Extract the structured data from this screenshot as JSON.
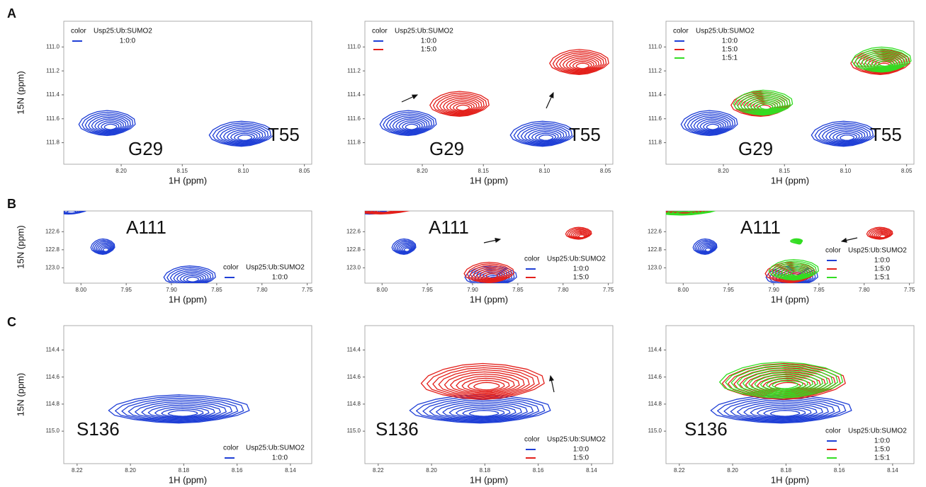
{
  "chart_data": [
    {
      "type": "contour",
      "panel": "A",
      "xlabel": "1H (ppm)",
      "ylabel": "15N (ppm)",
      "legend_heading": "color",
      "legend_title": "Usp25:Ub:SUMO2",
      "legend": "upper left",
      "contour_levels": 9,
      "xlim": [
        8.247,
        8.044
      ],
      "ylim": [
        111.98,
        110.785
      ],
      "xticks": [
        {
          "value": 8.2,
          "label": "8.20"
        },
        8.15,
        {
          "value": 8.1,
          "label": "8.10"
        },
        8.05
      ],
      "yticks": [
        {
          "value": 111,
          "label": "111.0"
        },
        111.2,
        111.4,
        111.6,
        111.8
      ],
      "annotations": [
        "G29",
        "T55"
      ],
      "series": [
        {
          "name": "1:0:0",
          "color": "#1f3fd6",
          "peaks": [
            {
              "x": 8.21,
              "y": 111.66,
              "x_width": 0.021,
              "y_width": 0.11
            },
            {
              "x": 8.1,
              "y": 111.75,
              "x_width": 0.024,
              "y_width": 0.11
            }
          ]
        }
      ]
    },
    {
      "type": "contour",
      "xlabel": "1H (ppm)",
      "legend_heading": "color",
      "legend_title": "Usp25:Ub:SUMO2",
      "legend": "upper left",
      "contour_levels": 9,
      "xlim": [
        8.247,
        8.044
      ],
      "ylim": [
        111.98,
        110.785
      ],
      "xticks": [
        {
          "value": 8.2,
          "label": "8.20"
        },
        8.15,
        {
          "value": 8.1,
          "label": "8.10"
        },
        8.05
      ],
      "yticks": [
        {
          "value": 111,
          "label": "111.0"
        },
        111.2,
        111.4,
        111.6,
        111.8
      ],
      "annotations": [
        "G29",
        "T55"
      ],
      "series": [
        {
          "name": "1:0:0",
          "color": "#1f3fd6",
          "peaks": [
            {
              "x": 8.21,
              "y": 111.66,
              "x_width": 0.021,
              "y_width": 0.11
            },
            {
              "x": 8.1,
              "y": 111.75,
              "x_width": 0.024,
              "y_width": 0.11
            }
          ]
        },
        {
          "name": "1:5:0",
          "color": "#e3201b",
          "peaks": [
            {
              "x": 8.168,
              "y": 111.5,
              "x_width": 0.022,
              "y_width": 0.11
            },
            {
              "x": 8.07,
              "y": 111.15,
              "x_width": 0.022,
              "y_width": 0.11
            }
          ]
        }
      ]
    },
    {
      "type": "contour",
      "xlabel": "1H (ppm)",
      "legend_heading": "color",
      "legend_title": "Usp25:Ub:SUMO2",
      "legend": "upper left",
      "contour_levels": 9,
      "xlim": [
        8.247,
        8.044
      ],
      "ylim": [
        111.98,
        110.785
      ],
      "xticks": [
        {
          "value": 8.2,
          "label": "8.20"
        },
        8.15,
        {
          "value": 8.1,
          "label": "8.10"
        },
        8.05
      ],
      "yticks": [
        {
          "value": 111,
          "label": "111.0"
        },
        111.2,
        111.4,
        111.6,
        111.8
      ],
      "annotations": [
        "G29",
        "T55"
      ],
      "series": [
        {
          "name": "1:0:0",
          "color": "#1f3fd6",
          "peaks": [
            {
              "x": 8.21,
              "y": 111.66,
              "x_width": 0.021,
              "y_width": 0.11
            },
            {
              "x": 8.1,
              "y": 111.75,
              "x_width": 0.024,
              "y_width": 0.11
            }
          ]
        },
        {
          "name": "1:5:0",
          "color": "#e3201b",
          "peaks": [
            {
              "x": 8.168,
              "y": 111.5,
              "x_width": 0.022,
              "y_width": 0.11
            },
            {
              "x": 8.07,
              "y": 111.15,
              "x_width": 0.022,
              "y_width": 0.11
            }
          ]
        },
        {
          "name": "1:5:1",
          "color": "#33dd22",
          "peaks": [
            {
              "x": 8.166,
              "y": 111.49,
              "x_width": 0.022,
              "y_width": 0.11
            },
            {
              "x": 8.069,
              "y": 111.13,
              "x_width": 0.022,
              "y_width": 0.11
            }
          ]
        }
      ]
    },
    {
      "type": "contour",
      "panel": "B",
      "xlabel": "1H (ppm)",
      "ylabel": "15N (ppm)",
      "legend_heading": "color",
      "legend_title": "Usp25:Ub:SUMO2",
      "legend": "lower right",
      "contour_levels": 8,
      "xlim": [
        8.019,
        7.745
      ],
      "ylim": [
        123.17,
        122.37
      ],
      "xticks": [
        {
          "value": 8,
          "label": "8.00"
        },
        7.95,
        {
          "value": 7.9,
          "label": "7.90"
        },
        7.85,
        {
          "value": 7.8,
          "label": "7.80"
        },
        7.75
      ],
      "yticks": [
        122.6,
        122.8,
        {
          "value": 123,
          "label": "123.0"
        }
      ],
      "annotations": [
        "A111"
      ],
      "series": [
        {
          "name": "1:0:0",
          "color": "#1f3fd6",
          "peaks": [
            {
              "x": 8.012,
              "y": 122.37,
              "x_width": 0.02,
              "y_width": 0.06
            },
            {
              "x": 7.974,
              "y": 122.79,
              "x_width": 0.012,
              "y_width": 0.09
            },
            {
              "x": 7.878,
              "y": 123.12,
              "x_width": 0.026,
              "y_width": 0.12
            }
          ]
        }
      ]
    },
    {
      "type": "contour",
      "xlabel": "1H (ppm)",
      "legend_heading": "color",
      "legend_title": "Usp25:Ub:SUMO2",
      "legend": "lower right",
      "contour_levels": 8,
      "xlim": [
        8.019,
        7.745
      ],
      "ylim": [
        123.17,
        122.37
      ],
      "xticks": [
        {
          "value": 8,
          "label": "8.00"
        },
        7.95,
        {
          "value": 7.9,
          "label": "7.90"
        },
        7.85,
        {
          "value": 7.8,
          "label": "7.80"
        },
        7.75
      ],
      "yticks": [
        122.6,
        122.8,
        {
          "value": 123,
          "label": "123.0"
        }
      ],
      "annotations": [
        "A111"
      ],
      "series": [
        {
          "name": "1:0:0",
          "color": "#1f3fd6",
          "peaks": [
            {
              "x": 8.012,
              "y": 122.37,
              "x_width": 0.02,
              "y_width": 0.06
            },
            {
              "x": 7.974,
              "y": 122.79,
              "x_width": 0.012,
              "y_width": 0.09
            },
            {
              "x": 7.878,
              "y": 123.12,
              "x_width": 0.026,
              "y_width": 0.12
            }
          ]
        },
        {
          "name": "1:5:0",
          "color": "#e3201b",
          "peaks": [
            {
              "x": 8.0,
              "y": 122.36,
              "x_width": 0.035,
              "y_width": 0.07
            },
            {
              "x": 7.781,
              "y": 122.64,
              "x_width": 0.013,
              "y_width": 0.07
            },
            {
              "x": 7.88,
              "y": 123.08,
              "x_width": 0.025,
              "y_width": 0.12
            }
          ]
        }
      ]
    },
    {
      "type": "contour",
      "xlabel": "1H (ppm)",
      "legend_heading": "color",
      "legend_title": "Usp25:Ub:SUMO2",
      "legend": "lower right",
      "contour_levels": 8,
      "xlim": [
        8.019,
        7.745
      ],
      "ylim": [
        123.17,
        122.37
      ],
      "xticks": [
        {
          "value": 8,
          "label": "8.00"
        },
        7.95,
        {
          "value": 7.9,
          "label": "7.90"
        },
        7.85,
        {
          "value": 7.8,
          "label": "7.80"
        },
        7.75
      ],
      "yticks": [
        122.6,
        122.8,
        {
          "value": 123,
          "label": "123.0"
        }
      ],
      "annotations": [
        "A111"
      ],
      "series": [
        {
          "name": "1:0:0",
          "color": "#1f3fd6",
          "peaks": [
            {
              "x": 8.012,
              "y": 122.37,
              "x_width": 0.02,
              "y_width": 0.06
            },
            {
              "x": 7.974,
              "y": 122.79,
              "x_width": 0.012,
              "y_width": 0.09
            },
            {
              "x": 7.878,
              "y": 123.12,
              "x_width": 0.026,
              "y_width": 0.12
            }
          ]
        },
        {
          "name": "1:5:0",
          "color": "#e3201b",
          "peaks": [
            {
              "x": 8.0,
              "y": 122.36,
              "x_width": 0.035,
              "y_width": 0.07
            },
            {
              "x": 7.781,
              "y": 122.64,
              "x_width": 0.013,
              "y_width": 0.07
            },
            {
              "x": 7.88,
              "y": 123.08,
              "x_width": 0.025,
              "y_width": 0.12
            }
          ]
        },
        {
          "name": "1:5:1",
          "color": "#33dd22",
          "peaks": [
            {
              "x": 8.0,
              "y": 122.38,
              "x_width": 0.035,
              "y_width": 0.06
            },
            {
              "x": 7.873,
              "y": 122.72,
              "x_width": 0.006,
              "y_width": 0.025
            },
            {
              "x": 7.876,
              "y": 123.05,
              "x_width": 0.025,
              "y_width": 0.12
            }
          ]
        }
      ]
    },
    {
      "type": "contour",
      "panel": "C",
      "xlabel": "1H (ppm)",
      "ylabel": "15N (ppm)",
      "legend_heading": "color",
      "legend_title": "Usp25:Ub:SUMO2",
      "legend": "lower right",
      "contour_levels": 10,
      "xlim": [
        8.225,
        8.132
      ],
      "ylim": [
        115.24,
        114.22
      ],
      "xticks": [
        8.22,
        {
          "value": 8.2,
          "label": "8.20"
        },
        8.18,
        8.16,
        8.14
      ],
      "yticks": [
        114.4,
        114.6,
        114.8,
        {
          "value": 115,
          "label": "115.0"
        }
      ],
      "annotations": [
        "S136"
      ],
      "series": [
        {
          "name": "1:0:0",
          "color": "#1f3fd6",
          "peaks": [
            {
              "x": 8.181,
              "y": 114.86,
              "x_width": 0.024,
              "y_width": 0.11
            }
          ]
        }
      ]
    },
    {
      "type": "contour",
      "xlabel": "1H (ppm)",
      "legend_heading": "color",
      "legend_title": "Usp25:Ub:SUMO2",
      "legend": "lower right",
      "contour_levels": 10,
      "xlim": [
        8.225,
        8.132
      ],
      "ylim": [
        115.24,
        114.22
      ],
      "xticks": [
        8.22,
        {
          "value": 8.2,
          "label": "8.20"
        },
        8.18,
        8.16,
        8.14
      ],
      "yticks": [
        114.4,
        114.6,
        114.8,
        {
          "value": 115,
          "label": "115.0"
        }
      ],
      "annotations": [
        "S136"
      ],
      "series": [
        {
          "name": "1:0:0",
          "color": "#1f3fd6",
          "peaks": [
            {
              "x": 8.181,
              "y": 114.86,
              "x_width": 0.024,
              "y_width": 0.11
            }
          ]
        },
        {
          "name": "1:5:0",
          "color": "#e3201b",
          "peaks": [
            {
              "x": 8.18,
              "y": 114.66,
              "x_width": 0.021,
              "y_width": 0.14
            }
          ]
        }
      ]
    },
    {
      "type": "contour",
      "xlabel": "1H (ppm)",
      "legend_heading": "color",
      "legend_title": "Usp25:Ub:SUMO2",
      "legend": "lower right",
      "contour_levels": 10,
      "xlim": [
        8.225,
        8.132
      ],
      "ylim": [
        115.24,
        114.22
      ],
      "xticks": [
        8.22,
        {
          "value": 8.2,
          "label": "8.20"
        },
        8.18,
        8.16,
        8.14
      ],
      "yticks": [
        114.4,
        114.6,
        114.8,
        {
          "value": 115,
          "label": "115.0"
        }
      ],
      "annotations": [
        "S136"
      ],
      "series": [
        {
          "name": "1:0:0",
          "color": "#1f3fd6",
          "peaks": [
            {
              "x": 8.181,
              "y": 114.86,
              "x_width": 0.024,
              "y_width": 0.11
            }
          ]
        },
        {
          "name": "1:5:0",
          "color": "#e3201b",
          "peaks": [
            {
              "x": 8.18,
              "y": 114.66,
              "x_width": 0.021,
              "y_width": 0.14
            }
          ]
        },
        {
          "name": "1:5:1",
          "color": "#33dd22",
          "peaks": [
            {
              "x": 8.181,
              "y": 114.65,
              "x_width": 0.021,
              "y_width": 0.14
            }
          ]
        }
      ]
    }
  ]
}
